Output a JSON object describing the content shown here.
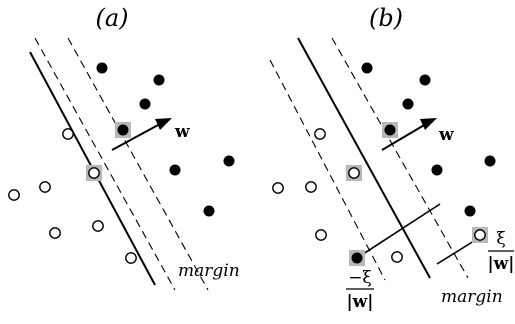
{
  "panels": {
    "a": {
      "title": "(a)",
      "vector_label": "w",
      "margin_label": "margin"
    },
    "b": {
      "title": "(b)",
      "vector_label": "w",
      "margin_label": "margin",
      "slack_neg": {
        "numerator": "−ξ",
        "denominator": "|w|"
      },
      "slack_pos": {
        "numerator": "ξ",
        "denominator": "|w|"
      }
    }
  },
  "colors": {
    "ink": "#000000",
    "support_vector_box": "#b8b8b8",
    "background": "#ffffff"
  }
}
